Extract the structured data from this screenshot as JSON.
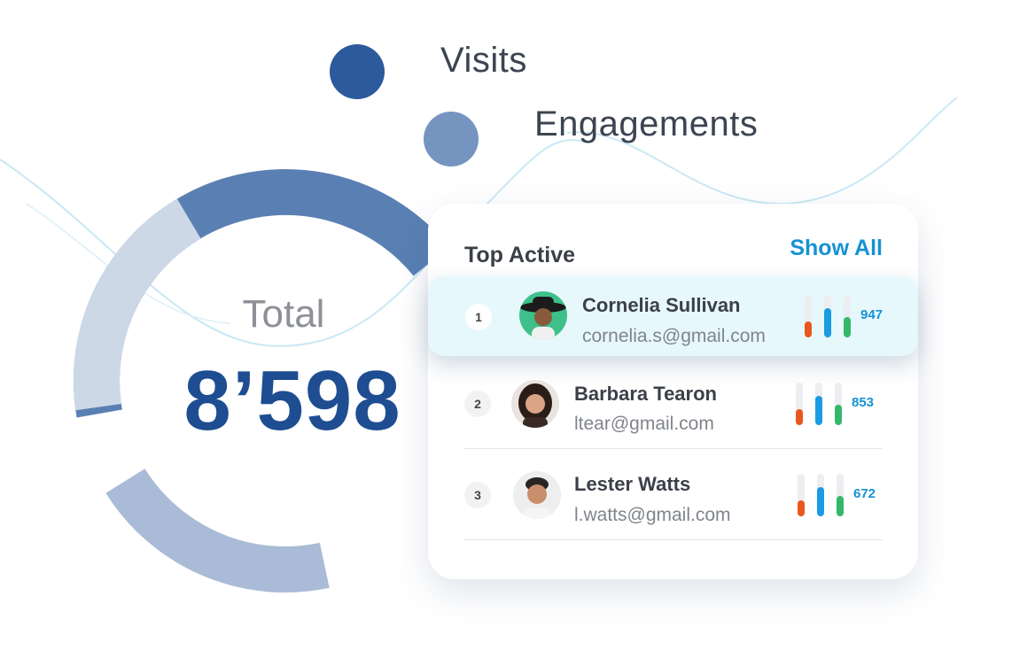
{
  "legend": [
    {
      "label": "Visits",
      "color": "#2c5a9c"
    },
    {
      "label": "Engagements",
      "color": "#7694c0"
    }
  ],
  "donut": {
    "label": "Total",
    "value": "8’598",
    "segments": [
      {
        "color": "#5a80b3"
      },
      {
        "color": "#cdd8e7"
      },
      {
        "color": "#a9bbd6"
      }
    ]
  },
  "card": {
    "title": "Top Active",
    "show_all": "Show All",
    "rows": [
      {
        "rank": "1",
        "name": "Cornelia Sullivan",
        "email": "cornelia.s@gmail.com",
        "score": "947",
        "levels": [
          0.38,
          0.68,
          0.48
        ]
      },
      {
        "rank": "2",
        "name": "Barbara Tearon",
        "email": "ltear@gmail.com",
        "score": "853",
        "levels": [
          0.38,
          0.68,
          0.48
        ]
      },
      {
        "rank": "3",
        "name": "Lester Watts",
        "email": "l.watts@gmail.com",
        "score": "672",
        "levels": [
          0.38,
          0.68,
          0.48
        ]
      }
    ]
  },
  "bar_colors": [
    "#e8571e",
    "#1a9be3",
    "#33b86b"
  ]
}
